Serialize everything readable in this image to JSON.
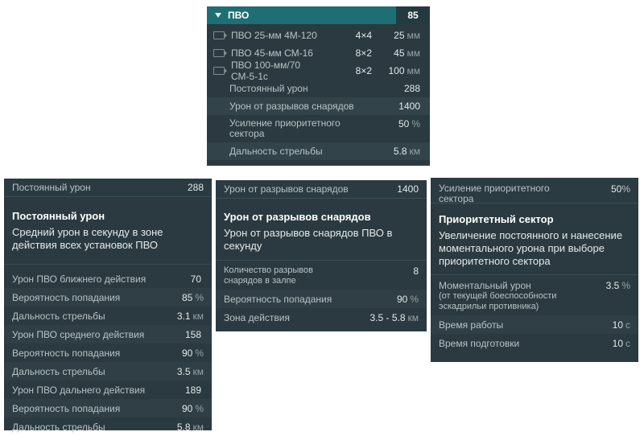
{
  "top": {
    "header": {
      "title": "ПВО",
      "value": "85"
    },
    "guns": [
      {
        "label": "ПВО 25-мм 4М-120",
        "count": "4×4",
        "caliber": "25",
        "unit": "мм"
      },
      {
        "label": "ПВО 45-мм СМ-16",
        "count": "8×2",
        "caliber": "45",
        "unit": "мм"
      },
      {
        "label": "ПВО 100-мм/70 СМ-5-1с",
        "count": "8×2",
        "caliber": "100",
        "unit": "мм"
      }
    ],
    "stats": [
      {
        "label": "Постоянный урон",
        "value": "288",
        "unit": ""
      },
      {
        "label": "Урон от разрывов снарядов",
        "value": "1400",
        "unit": ""
      },
      {
        "label": "Усиление приоритетного сектора",
        "value": "50",
        "unit": "%"
      },
      {
        "label": "Дальность стрельбы",
        "value": "5.8",
        "unit": "км"
      }
    ]
  },
  "panel1": {
    "head_label": "Постоянный урон",
    "head_value": "288",
    "title": "Постоянный урон",
    "description": "Средний урон в секунду в зоне действия всех установок ПВО",
    "rows": [
      {
        "label": "Урон ПВО ближнего действия",
        "value": "70",
        "unit": ""
      },
      {
        "label": "Вероятность попадания",
        "value": "85",
        "unit": "%"
      },
      {
        "label": "Дальность стрельбы",
        "value": "3.1",
        "unit": "км"
      },
      {
        "label": "Урон ПВО среднего действия",
        "value": "158",
        "unit": ""
      },
      {
        "label": "Вероятность попадания",
        "value": "90",
        "unit": "%"
      },
      {
        "label": "Дальность стрельбы",
        "value": "3.5",
        "unit": "км"
      },
      {
        "label": "Урон ПВО дальнего действия",
        "value": "189",
        "unit": ""
      },
      {
        "label": "Вероятность попадания",
        "value": "90",
        "unit": "%"
      },
      {
        "label": "Дальность стрельбы",
        "value": "5.8",
        "unit": "км"
      }
    ]
  },
  "panel2": {
    "head_label": "Урон от разрывов снарядов",
    "head_value": "1400",
    "title": "Урон от разрывов снарядов",
    "description": "Урон от разрывов снарядов ПВО в секунду",
    "rows": [
      {
        "label": "Количество разрывов снарядов в залпе",
        "value": "8",
        "unit": ""
      },
      {
        "label": "Вероятность попадания",
        "value": "90",
        "unit": "%"
      },
      {
        "label": "Зона действия",
        "value": "3.5 - 5.8",
        "unit": "км"
      }
    ]
  },
  "panel3": {
    "head_label": "Усиление приоритетного сектора",
    "head_value": "50",
    "head_unit": "%",
    "title": "Приоритетный сектор",
    "description": "Увеличение постоянного и нанесение моментального урона при выборе приоритетного сектора",
    "rows": [
      {
        "label": "Моментальный урон",
        "sublabel": "(от текущей боеспособности эскадрильи противника)",
        "value": "3.5",
        "unit": "%"
      },
      {
        "label": "Время работы",
        "value": "10",
        "unit": "с"
      },
      {
        "label": "Время подготовки",
        "value": "10",
        "unit": "с"
      }
    ]
  }
}
